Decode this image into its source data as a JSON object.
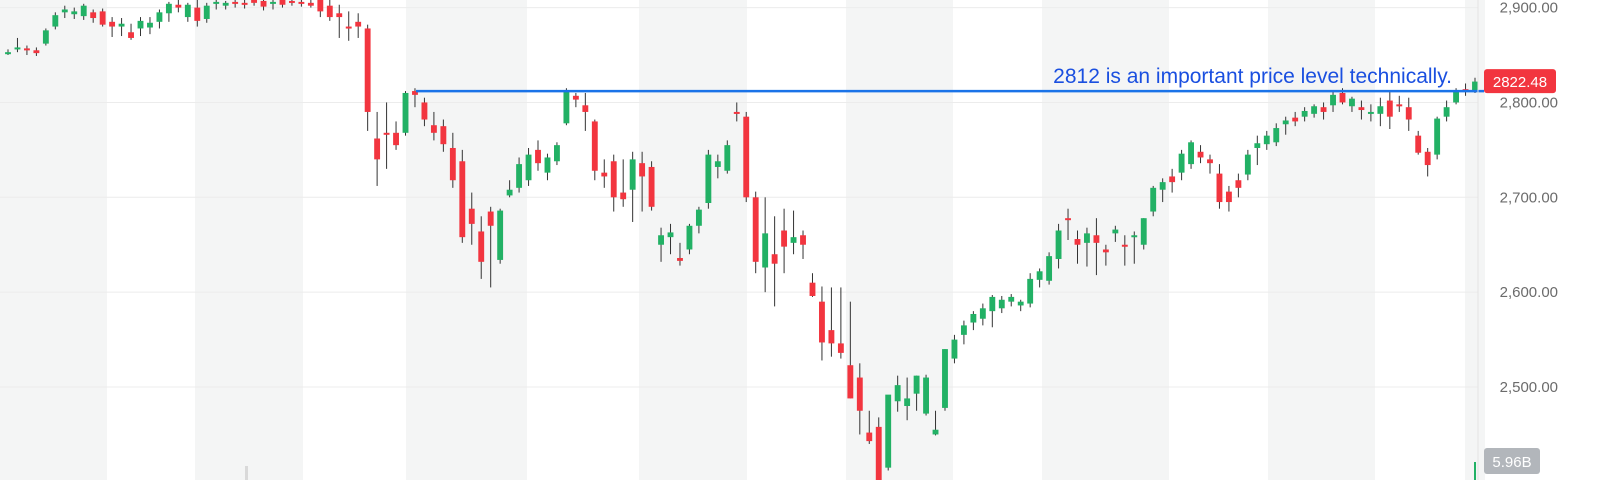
{
  "chart_data": {
    "type": "candlestick",
    "y_axis": {
      "ticks": [
        "2,500.00",
        "2,600.00",
        "2,700.00",
        "2,800.00",
        "2,900.00"
      ],
      "tick_values": [
        2500,
        2600,
        2700,
        2800,
        2900
      ],
      "range": [
        2402,
        2908
      ],
      "position": "right",
      "grid": true
    },
    "candles": [
      [
        2852,
        2856,
        2850,
        2853
      ],
      [
        2856,
        2868,
        2853,
        2858
      ],
      [
        2857,
        2860,
        2850,
        2856
      ],
      [
        2855,
        2858,
        2849,
        2852
      ],
      [
        2862,
        2878,
        2860,
        2876
      ],
      [
        2880,
        2895,
        2877,
        2892
      ],
      [
        2895,
        2902,
        2889,
        2898
      ],
      [
        2893,
        2900,
        2888,
        2896
      ],
      [
        2891,
        2904,
        2887,
        2902
      ],
      [
        2895,
        2898,
        2884,
        2889
      ],
      [
        2896,
        2899,
        2880,
        2882
      ],
      [
        2885,
        2890,
        2869,
        2880
      ],
      [
        2880,
        2889,
        2870,
        2883
      ],
      [
        2874,
        2883,
        2866,
        2868
      ],
      [
        2878,
        2890,
        2870,
        2886
      ],
      [
        2879,
        2890,
        2872,
        2884
      ],
      [
        2885,
        2898,
        2878,
        2895
      ],
      [
        2894,
        2906,
        2885,
        2904
      ],
      [
        2903,
        2908,
        2895,
        2900
      ],
      [
        2890,
        2905,
        2885,
        2903
      ],
      [
        2900,
        2908,
        2880,
        2886
      ],
      [
        2888,
        2905,
        2884,
        2902
      ],
      [
        2904,
        2908,
        2898,
        2906
      ],
      [
        2902,
        2907,
        2898,
        2905
      ],
      [
        2906,
        2908,
        2900,
        2904
      ],
      [
        2905,
        2908,
        2899,
        2903
      ],
      [
        2908,
        2908,
        2902,
        2905
      ],
      [
        2907,
        2908,
        2897,
        2901
      ],
      [
        2904,
        2908,
        2898,
        2906
      ],
      [
        2908,
        2908,
        2900,
        2903
      ],
      [
        2907,
        2908,
        2902,
        2905
      ],
      [
        2906,
        2908,
        2901,
        2904
      ],
      [
        2905,
        2908,
        2900,
        2902
      ],
      [
        2908,
        2908,
        2890,
        2896
      ],
      [
        2902,
        2908,
        2886,
        2890
      ],
      [
        2894,
        2903,
        2868,
        2890
      ],
      [
        2880,
        2896,
        2865,
        2878
      ],
      [
        2885,
        2894,
        2868,
        2880
      ],
      [
        2878,
        2882,
        2770,
        2790
      ],
      [
        2762,
        2790,
        2712,
        2740
      ],
      [
        2768,
        2800,
        2730,
        2766
      ],
      [
        2768,
        2780,
        2750,
        2755
      ],
      [
        2768,
        2812,
        2765,
        2810
      ],
      [
        2812,
        2815,
        2795,
        2808
      ],
      [
        2800,
        2805,
        2775,
        2782
      ],
      [
        2776,
        2790,
        2760,
        2768
      ],
      [
        2775,
        2782,
        2748,
        2756
      ],
      [
        2752,
        2768,
        2710,
        2718
      ],
      [
        2738,
        2750,
        2652,
        2658
      ],
      [
        2688,
        2705,
        2650,
        2672
      ],
      [
        2664,
        2680,
        2614,
        2632
      ],
      [
        2685,
        2690,
        2605,
        2670
      ],
      [
        2634,
        2688,
        2630,
        2686
      ],
      [
        2702,
        2718,
        2700,
        2708
      ],
      [
        2710,
        2742,
        2705,
        2735
      ],
      [
        2718,
        2752,
        2712,
        2745
      ],
      [
        2750,
        2760,
        2728,
        2736
      ],
      [
        2726,
        2746,
        2718,
        2742
      ],
      [
        2738,
        2758,
        2734,
        2755
      ],
      [
        2778,
        2815,
        2776,
        2812
      ],
      [
        2807,
        2810,
        2795,
        2803
      ],
      [
        2797,
        2810,
        2770,
        2790
      ],
      [
        2780,
        2782,
        2718,
        2728
      ],
      [
        2726,
        2740,
        2710,
        2722
      ],
      [
        2738,
        2745,
        2685,
        2700
      ],
      [
        2705,
        2740,
        2690,
        2698
      ],
      [
        2708,
        2748,
        2674,
        2740
      ],
      [
        2736,
        2748,
        2685,
        2722
      ],
      [
        2732,
        2738,
        2686,
        2690
      ],
      [
        2650,
        2668,
        2632,
        2660
      ],
      [
        2658,
        2672,
        2640,
        2663
      ],
      [
        2636,
        2652,
        2628,
        2633
      ],
      [
        2645,
        2672,
        2640,
        2670
      ],
      [
        2670,
        2690,
        2662,
        2687
      ],
      [
        2694,
        2750,
        2688,
        2745
      ],
      [
        2732,
        2745,
        2720,
        2738
      ],
      [
        2728,
        2760,
        2725,
        2755
      ],
      [
        2790,
        2800,
        2780,
        2788
      ],
      [
        2785,
        2790,
        2695,
        2700
      ],
      [
        2700,
        2706,
        2620,
        2632
      ],
      [
        2626,
        2700,
        2600,
        2662
      ],
      [
        2640,
        2680,
        2585,
        2630
      ],
      [
        2665,
        2688,
        2620,
        2648
      ],
      [
        2652,
        2686,
        2640,
        2658
      ],
      [
        2660,
        2665,
        2635,
        2650
      ],
      [
        2610,
        2620,
        2595,
        2596
      ],
      [
        2590,
        2606,
        2528,
        2547
      ],
      [
        2560,
        2605,
        2532,
        2546
      ],
      [
        2546,
        2605,
        2530,
        2536
      ],
      [
        2523,
        2590,
        2488,
        2488
      ],
      [
        2510,
        2525,
        2450,
        2475
      ],
      [
        2452,
        2475,
        2440,
        2443
      ],
      [
        2458,
        2468,
        2402,
        2402
      ],
      [
        2415,
        2490,
        2412,
        2492
      ],
      [
        2485,
        2512,
        2474,
        2502
      ],
      [
        2480,
        2510,
        2465,
        2488
      ],
      [
        2493,
        2512,
        2475,
        2512
      ],
      [
        2472,
        2513,
        2470,
        2510
      ],
      [
        2450,
        2475,
        2449,
        2455
      ],
      [
        2478,
        2540,
        2475,
        2540
      ],
      [
        2530,
        2555,
        2525,
        2550
      ],
      [
        2555,
        2570,
        2545,
        2565
      ],
      [
        2568,
        2580,
        2560,
        2577
      ],
      [
        2572,
        2588,
        2565,
        2583
      ],
      [
        2580,
        2597,
        2563,
        2595
      ],
      [
        2583,
        2596,
        2578,
        2592
      ],
      [
        2590,
        2598,
        2585,
        2595
      ],
      [
        2586,
        2592,
        2580,
        2590
      ],
      [
        2588,
        2620,
        2584,
        2614
      ],
      [
        2613,
        2625,
        2605,
        2622
      ],
      [
        2612,
        2642,
        2608,
        2638
      ],
      [
        2635,
        2672,
        2625,
        2665
      ],
      [
        2678,
        2688,
        2655,
        2676
      ],
      [
        2656,
        2665,
        2630,
        2650
      ],
      [
        2652,
        2668,
        2627,
        2662
      ],
      [
        2660,
        2678,
        2618,
        2652
      ],
      [
        2645,
        2650,
        2628,
        2642
      ],
      [
        2662,
        2670,
        2653,
        2666
      ],
      [
        2650,
        2660,
        2628,
        2648
      ],
      [
        2658,
        2664,
        2630,
        2660
      ],
      [
        2650,
        2678,
        2645,
        2678
      ],
      [
        2685,
        2712,
        2680,
        2710
      ],
      [
        2708,
        2720,
        2695,
        2716
      ],
      [
        2722,
        2730,
        2705,
        2716
      ],
      [
        2726,
        2750,
        2718,
        2746
      ],
      [
        2735,
        2760,
        2730,
        2758
      ],
      [
        2748,
        2755,
        2736,
        2742
      ],
      [
        2740,
        2745,
        2725,
        2736
      ],
      [
        2725,
        2735,
        2688,
        2695
      ],
      [
        2706,
        2712,
        2685,
        2695
      ],
      [
        2718,
        2725,
        2700,
        2710
      ],
      [
        2724,
        2750,
        2718,
        2745
      ],
      [
        2752,
        2765,
        2734,
        2757
      ],
      [
        2756,
        2770,
        2750,
        2765
      ],
      [
        2758,
        2778,
        2754,
        2773
      ],
      [
        2777,
        2785,
        2766,
        2781
      ],
      [
        2784,
        2790,
        2775,
        2780
      ],
      [
        2785,
        2795,
        2780,
        2791
      ],
      [
        2788,
        2798,
        2784,
        2796
      ],
      [
        2795,
        2800,
        2782,
        2790
      ],
      [
        2797,
        2812,
        2790,
        2808
      ],
      [
        2810,
        2815,
        2798,
        2800
      ],
      [
        2796,
        2806,
        2790,
        2804
      ],
      [
        2795,
        2802,
        2782,
        2792
      ],
      [
        2790,
        2798,
        2780,
        2790
      ],
      [
        2788,
        2805,
        2775,
        2796
      ],
      [
        2802,
        2812,
        2772,
        2785
      ],
      [
        2798,
        2807,
        2790,
        2797
      ],
      [
        2795,
        2805,
        2770,
        2782
      ],
      [
        2765,
        2770,
        2745,
        2747
      ],
      [
        2748,
        2752,
        2722,
        2734
      ],
      [
        2745,
        2785,
        2740,
        2783
      ],
      [
        2785,
        2802,
        2780,
        2795
      ],
      [
        2800,
        2815,
        2798,
        2812
      ],
      [
        2814,
        2820,
        2807,
        2813
      ],
      [
        2813,
        2826,
        2810,
        2822
      ]
    ],
    "reference_line": {
      "value": 2812
    },
    "annotation": "2812 is an important price level technically.",
    "last_price_label": "2822.48",
    "volume_label": "5.96B",
    "colors": {
      "up": "#22b165",
      "down": "#f2353f",
      "reference_line": "#1a73e8",
      "annotation_text": "#1a4fe0",
      "band": "#f4f5f5",
      "grid": "#ececec",
      "axis_text": "#6b6b6b",
      "price_badge": "#f2353f",
      "volume_badge": "#b2b6bb"
    }
  }
}
